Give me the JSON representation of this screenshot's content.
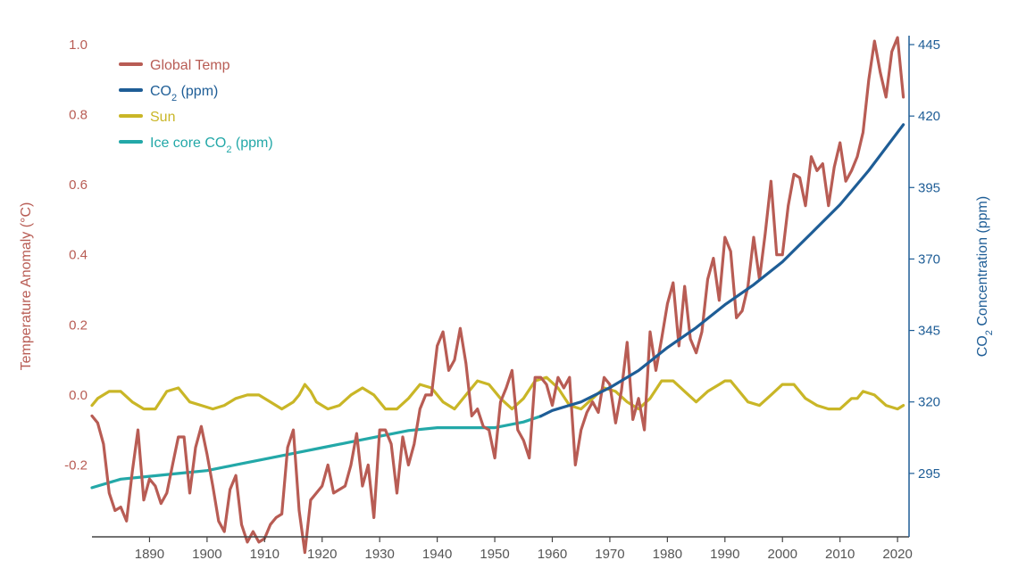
{
  "chart_data": {
    "type": "line",
    "x_ticks": [
      "1890",
      "1900",
      "1910",
      "1920",
      "1930",
      "1940",
      "1950",
      "1960",
      "1970",
      "1980",
      "1990",
      "2000",
      "2010",
      "2020"
    ],
    "xlim": [
      1880,
      2022
    ],
    "left_axis": {
      "label": "Temperature Anomaly (°C)",
      "ticks": [
        "1.0",
        "0.8",
        "0.6",
        "0.4",
        "0.2",
        "0.0",
        "-0.2"
      ],
      "ylim": [
        -0.4,
        1.0
      ],
      "color": "#b85c54"
    },
    "right_axis": {
      "label_prefix": "CO",
      "label_sub": "2",
      "label_suffix": " Concentration (ppm)",
      "ticks": [
        "445",
        "420",
        "395",
        "370",
        "345",
        "320",
        "295"
      ],
      "ylim": [
        270,
        445
      ],
      "color": "#1e5d96"
    },
    "legend": {
      "placement": "top-left",
      "items": [
        {
          "text": "Global Temp",
          "sub": "",
          "after": "",
          "color": "#b85c54"
        },
        {
          "text": "CO",
          "sub": "2",
          "after": " (ppm)",
          "color": "#1e5d96"
        },
        {
          "text": "Sun",
          "sub": "",
          "after": "",
          "color": "#c9b627"
        },
        {
          "text": "Ice core CO",
          "sub": "2",
          "after": " (ppm)",
          "color": "#23a8a8"
        }
      ]
    },
    "series": [
      {
        "name": "Global Temp",
        "axis": "left",
        "color": "#b85c54",
        "x": [
          1880,
          1881,
          1882,
          1883,
          1884,
          1885,
          1886,
          1887,
          1888,
          1889,
          1890,
          1891,
          1892,
          1893,
          1894,
          1895,
          1896,
          1897,
          1898,
          1899,
          1900,
          1901,
          1902,
          1903,
          1904,
          1905,
          1906,
          1907,
          1908,
          1909,
          1910,
          1911,
          1912,
          1913,
          1914,
          1915,
          1916,
          1917,
          1918,
          1919,
          1920,
          1921,
          1922,
          1923,
          1924,
          1925,
          1926,
          1927,
          1928,
          1929,
          1930,
          1931,
          1932,
          1933,
          1934,
          1935,
          1936,
          1937,
          1938,
          1939,
          1940,
          1941,
          1942,
          1943,
          1944,
          1945,
          1946,
          1947,
          1948,
          1949,
          1950,
          1951,
          1952,
          1953,
          1954,
          1955,
          1956,
          1957,
          1958,
          1959,
          1960,
          1961,
          1962,
          1963,
          1964,
          1965,
          1966,
          1967,
          1968,
          1969,
          1970,
          1971,
          1972,
          1973,
          1974,
          1975,
          1976,
          1977,
          1978,
          1979,
          1980,
          1981,
          1982,
          1983,
          1984,
          1985,
          1986,
          1987,
          1988,
          1989,
          1990,
          1991,
          1992,
          1993,
          1994,
          1995,
          1996,
          1997,
          1998,
          1999,
          2000,
          2001,
          2002,
          2003,
          2004,
          2005,
          2006,
          2007,
          2008,
          2009,
          2010,
          2011,
          2012,
          2013,
          2014,
          2015,
          2016,
          2017,
          2018,
          2019,
          2020,
          2021
        ],
        "values": [
          -0.06,
          -0.08,
          -0.14,
          -0.28,
          -0.33,
          -0.32,
          -0.36,
          -0.22,
          -0.1,
          -0.3,
          -0.24,
          -0.26,
          -0.31,
          -0.28,
          -0.2,
          -0.12,
          -0.12,
          -0.28,
          -0.15,
          -0.09,
          -0.17,
          -0.26,
          -0.36,
          -0.39,
          -0.27,
          -0.23,
          -0.37,
          -0.42,
          -0.39,
          -0.42,
          -0.41,
          -0.37,
          -0.35,
          -0.34,
          -0.15,
          -0.1,
          -0.33,
          -0.45,
          -0.3,
          -0.28,
          -0.26,
          -0.2,
          -0.28,
          -0.27,
          -0.26,
          -0.2,
          -0.11,
          -0.26,
          -0.2,
          -0.35,
          -0.1,
          -0.1,
          -0.14,
          -0.28,
          -0.12,
          -0.2,
          -0.14,
          -0.04,
          0.0,
          0.0,
          0.14,
          0.18,
          0.07,
          0.1,
          0.19,
          0.09,
          -0.06,
          -0.04,
          -0.09,
          -0.1,
          -0.18,
          -0.02,
          0.02,
          0.07,
          -0.1,
          -0.13,
          -0.18,
          0.05,
          0.05,
          0.03,
          -0.03,
          0.05,
          0.02,
          0.05,
          -0.2,
          -0.1,
          -0.05,
          -0.02,
          -0.05,
          0.05,
          0.03,
          -0.08,
          0.01,
          0.15,
          -0.07,
          -0.01,
          -0.1,
          0.18,
          0.07,
          0.16,
          0.26,
          0.32,
          0.14,
          0.31,
          0.16,
          0.12,
          0.18,
          0.33,
          0.39,
          0.27,
          0.45,
          0.41,
          0.22,
          0.24,
          0.31,
          0.45,
          0.33,
          0.46,
          0.61,
          0.4,
          0.4,
          0.54,
          0.63,
          0.62,
          0.54,
          0.68,
          0.64,
          0.66,
          0.54,
          0.65,
          0.72,
          0.61,
          0.64,
          0.68,
          0.75,
          0.9,
          1.01,
          0.92,
          0.85,
          0.98,
          1.02,
          0.85
        ]
      },
      {
        "name": "CO2 (ppm)",
        "axis": "right",
        "color": "#1e5d96",
        "x": [
          1958,
          1960,
          1965,
          1970,
          1975,
          1980,
          1985,
          1990,
          1995,
          2000,
          2005,
          2010,
          2015,
          2021
        ],
        "values": [
          315,
          317,
          320,
          325,
          331,
          339,
          346,
          354,
          361,
          369,
          379,
          389,
          401,
          417
        ]
      },
      {
        "name": "Sun",
        "axis": "left",
        "color": "#c9b627",
        "x": [
          1880,
          1881,
          1883,
          1885,
          1887,
          1889,
          1891,
          1893,
          1895,
          1897,
          1899,
          1901,
          1903,
          1905,
          1907,
          1909,
          1911,
          1913,
          1915,
          1916,
          1917,
          1918,
          1919,
          1921,
          1923,
          1925,
          1927,
          1929,
          1931,
          1933,
          1935,
          1937,
          1939,
          1941,
          1943,
          1945,
          1947,
          1949,
          1951,
          1953,
          1955,
          1957,
          1959,
          1961,
          1963,
          1965,
          1967,
          1969,
          1971,
          1973,
          1975,
          1977,
          1979,
          1981,
          1983,
          1985,
          1987,
          1989,
          1990,
          1991,
          1992,
          1994,
          1996,
          1998,
          2000,
          2002,
          2004,
          2006,
          2008,
          2010,
          2012,
          2013,
          2014,
          2016,
          2018,
          2020,
          2021
        ],
        "values": [
          -0.03,
          -0.01,
          0.01,
          0.01,
          -0.02,
          -0.04,
          -0.04,
          0.01,
          0.02,
          -0.02,
          -0.03,
          -0.04,
          -0.03,
          -0.01,
          0.0,
          0.0,
          -0.02,
          -0.04,
          -0.02,
          0.0,
          0.03,
          0.01,
          -0.02,
          -0.04,
          -0.03,
          0.0,
          0.02,
          0.0,
          -0.04,
          -0.04,
          -0.01,
          0.03,
          0.02,
          -0.02,
          -0.04,
          0.0,
          0.04,
          0.03,
          -0.01,
          -0.04,
          -0.01,
          0.04,
          0.05,
          0.02,
          -0.03,
          -0.04,
          -0.01,
          0.02,
          0.01,
          -0.02,
          -0.04,
          -0.01,
          0.04,
          0.04,
          0.01,
          -0.02,
          0.01,
          0.03,
          0.04,
          0.04,
          0.02,
          -0.02,
          -0.03,
          0.0,
          0.03,
          0.03,
          -0.01,
          -0.03,
          -0.04,
          -0.04,
          -0.01,
          -0.01,
          0.01,
          0.0,
          -0.03,
          -0.04,
          -0.03
        ]
      },
      {
        "name": "Ice core CO2 (ppm)",
        "axis": "right",
        "color": "#23a8a8",
        "x": [
          1880,
          1885,
          1890,
          1895,
          1900,
          1905,
          1910,
          1915,
          1920,
          1925,
          1930,
          1935,
          1940,
          1945,
          1950,
          1955,
          1958
        ],
        "values": [
          290,
          293,
          294,
          295,
          296,
          298,
          300,
          302,
          304,
          306,
          308,
          310,
          311,
          311,
          311,
          313,
          315
        ]
      }
    ]
  }
}
